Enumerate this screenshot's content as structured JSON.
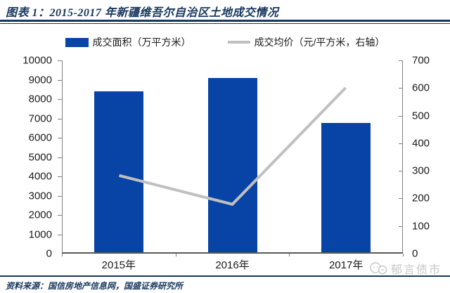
{
  "header": {
    "title": "图表 1：2015-2017 年新疆维吾尔自治区土地成交情况"
  },
  "legend": [
    {
      "label": "成交面积（万平方米）",
      "type": "bar",
      "color": "#0843A6"
    },
    {
      "label": "成交均价（元/平方米，右轴）",
      "type": "line",
      "color": "#C0C0C0"
    }
  ],
  "chart_data": {
    "type": "bar",
    "title": "2015-2017 年新疆维吾尔自治区土地成交情况",
    "categories": [
      "2015年",
      "2016年",
      "2017年"
    ],
    "series": [
      {
        "name": "成交面积（万平方米）",
        "type": "bar",
        "axis": "left",
        "color": "#0843A6",
        "values": [
          8400,
          9100,
          6750
        ]
      },
      {
        "name": "成交均价（元/平方米，右轴）",
        "type": "line",
        "axis": "right",
        "color": "#C0C0C0",
        "values": [
          280,
          175,
          600
        ]
      }
    ],
    "left_axis": {
      "min": 0,
      "max": 10000,
      "step": 1000,
      "ticks": [
        "10000",
        "9000",
        "8000",
        "7000",
        "6000",
        "5000",
        "4000",
        "3000",
        "2000",
        "1000",
        "0"
      ]
    },
    "right_axis": {
      "min": 0,
      "max": 700,
      "step": 100,
      "ticks": [
        "700",
        "600",
        "500",
        "400",
        "300",
        "200",
        "100",
        "0"
      ]
    },
    "grid": false,
    "legend_position": "top"
  },
  "footer": {
    "source": "资料来源：国信房地产信息网，国盛证券研究所",
    "watermark": "郁言债市"
  },
  "colors": {
    "accent_navy": "#17375E",
    "bar_blue": "#0843A6",
    "line_gray": "#C0C0C0",
    "axis_gray": "#7F7F7F",
    "watermark_gray": "#C7C7C7"
  }
}
